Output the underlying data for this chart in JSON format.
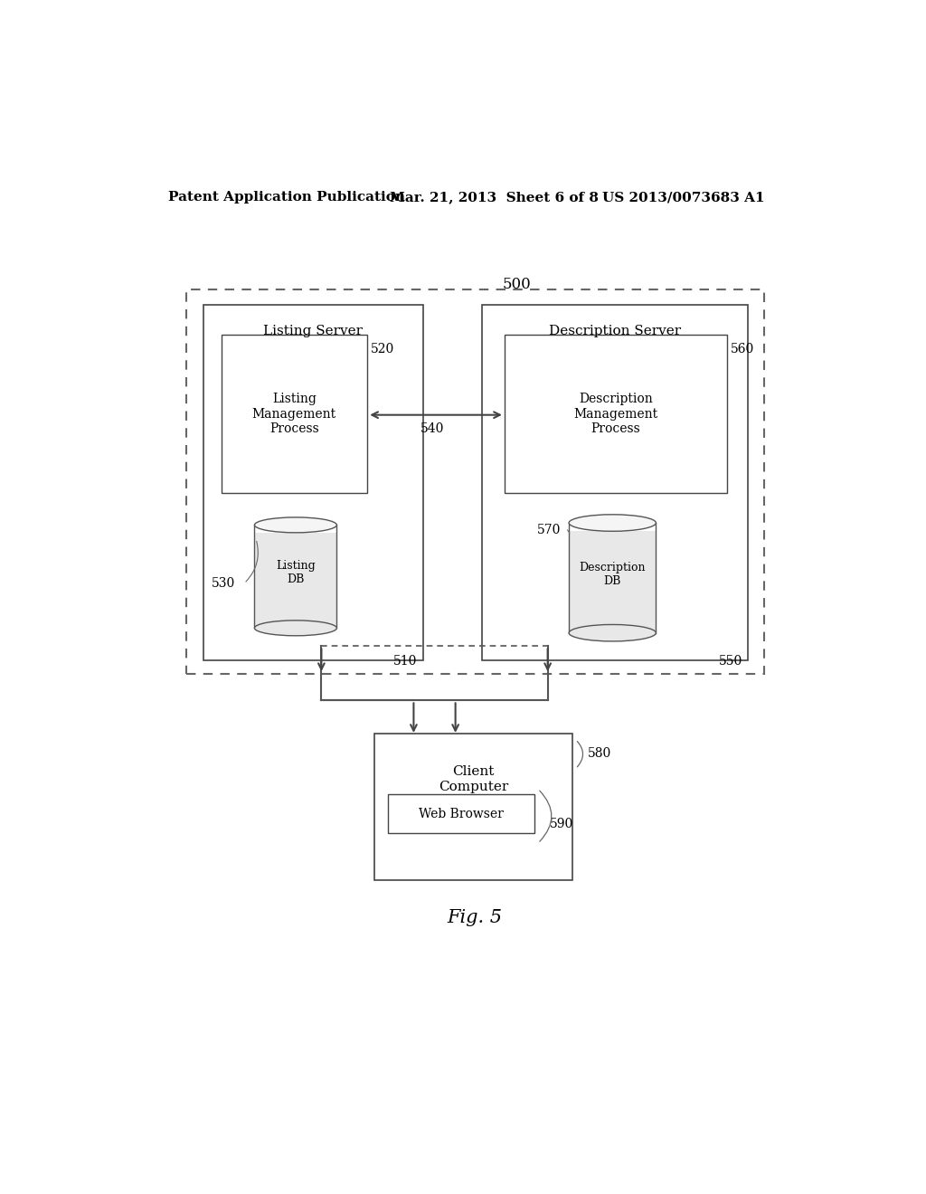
{
  "bg_color": "#ffffff",
  "header_left": "Patent Application Publication",
  "header_mid": "Mar. 21, 2013  Sheet 6 of 8",
  "header_right": "US 2013/0073683 A1",
  "fig_label": "Fig. 5",
  "outer_box_label": "500",
  "listing_server_box_label": "Listing Server",
  "listing_server_num": "510",
  "listing_mgmt_label": "Listing\nManagement\nProcess",
  "listing_mgmt_num": "520",
  "listing_db_label": "Listing\nDB",
  "listing_db_num": "530",
  "desc_server_box_label": "Description Server",
  "desc_server_num": "550",
  "desc_mgmt_label": "Description\nManagement\nProcess",
  "desc_mgmt_num": "560",
  "desc_db_label": "Description\nDB",
  "desc_db_num": "570",
  "arrow_540_label": "540",
  "client_box_label": "Client\nComputer",
  "client_num": "580",
  "web_browser_label": "Web Browser",
  "web_browser_num": "590"
}
